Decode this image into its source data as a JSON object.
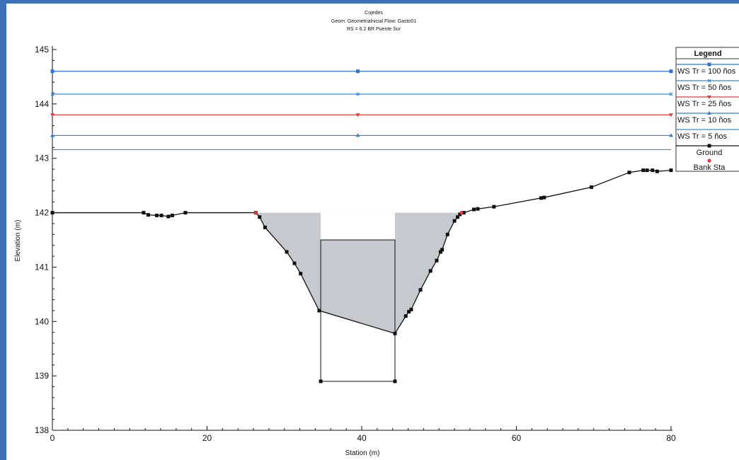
{
  "chart_data": {
    "type": "line",
    "title": "Cojedes",
    "subtitle_line1": "Geom: Geometrialnicial   Flow: Gasto01",
    "subtitle_line2": "RS = 6.2     BR  Puente Sur",
    "xlabel": "Station (m)",
    "ylabel": "Elevation (m)",
    "xlim": [
      0,
      80
    ],
    "ylim": [
      138,
      145
    ],
    "xticks": [
      0,
      20,
      40,
      60,
      80
    ],
    "yticks": [
      138,
      139,
      140,
      141,
      142,
      143,
      144,
      145
    ],
    "grid": false,
    "legend_position": "top-right",
    "legend_title": "Legend",
    "water_surfaces": [
      {
        "name": "WS Tr = 100 ños",
        "elevation": 144.6,
        "color": "#2f73d0",
        "marker": "square"
      },
      {
        "name": "WS Tr = 50 ños",
        "elevation": 144.18,
        "color": "#3a86d8",
        "marker": "x"
      },
      {
        "name": "WS Tr = 25 ños",
        "elevation": 143.8,
        "color": "#e23a3a",
        "marker": "triangle-down"
      },
      {
        "name": "WS Tr = 10 ños",
        "elevation": 143.42,
        "color": "#2f80d8",
        "marker": "triangle-up"
      },
      {
        "name": "WS Tr = 5 ños",
        "elevation": 143.16,
        "color": "#3a86d8",
        "marker": "none"
      }
    ],
    "ws_marker_x": [
      0,
      39.5,
      80
    ],
    "ground": {
      "name": "Ground",
      "color": "#111111",
      "x": [
        0,
        11.8,
        12.4,
        13.5,
        14.1,
        15.0,
        15.5,
        17.2,
        26.3,
        26.8,
        27.5,
        30.3,
        31.3,
        32.1,
        34.5,
        44.3,
        45.7,
        46.1,
        46.4,
        47.6,
        48.9,
        49.7,
        50.2,
        50.4,
        51.1,
        52.0,
        52.4,
        52.7,
        53.2,
        54.5,
        55.0,
        57.1,
        63.2,
        63.6,
        69.7,
        74.6,
        76.4,
        76.9,
        77.6,
        78.2,
        80
      ],
      "y": [
        142.0,
        142.0,
        141.96,
        141.95,
        141.95,
        141.93,
        141.95,
        142.0,
        142.0,
        141.92,
        141.73,
        141.28,
        141.07,
        140.88,
        140.2,
        139.78,
        140.1,
        140.18,
        140.22,
        140.58,
        140.93,
        141.12,
        141.28,
        141.32,
        141.6,
        141.85,
        141.92,
        141.97,
        142.0,
        142.06,
        142.07,
        142.11,
        142.27,
        142.28,
        142.47,
        142.74,
        142.78,
        142.78,
        142.78,
        142.76,
        142.78
      ]
    },
    "bank_stations": {
      "name": "Bank Sta",
      "x": [
        26.3,
        52.9
      ],
      "y": [
        142.0,
        142.0
      ],
      "color": "#e23a3a"
    },
    "bridge": {
      "left_x": 34.7,
      "right_x": 44.3,
      "deck_bottom": 141.5,
      "deck_top": 142.0,
      "bed": 138.9,
      "left_ground": 140.2,
      "right_ground": 139.78
    },
    "flow_area": {
      "top_elevation": 142.0,
      "left_x": 26.3,
      "right_x": 52.9,
      "fill": "#c7c9ce"
    }
  }
}
